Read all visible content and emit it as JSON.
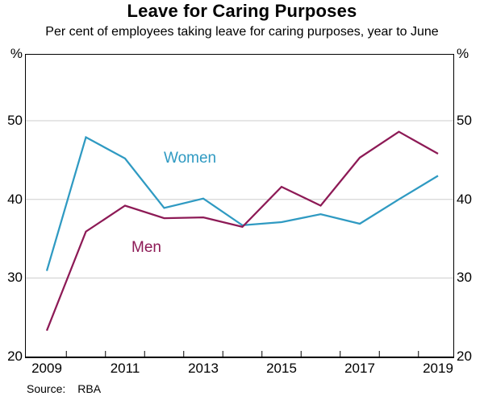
{
  "title": "Leave for Caring Purposes",
  "subtitle": "Per cent of employees taking leave for caring purposes, year to June",
  "source": {
    "label": "Source:",
    "value": "RBA"
  },
  "chart_data": {
    "type": "line",
    "title": "Leave for Caring Purposes",
    "subtitle": "Per cent of employees taking leave for caring purposes, year to June",
    "x": [
      2009,
      2010,
      2011,
      2012,
      2013,
      2014,
      2015,
      2016,
      2017,
      2018,
      2019
    ],
    "series": [
      {
        "name": "Women",
        "color": "#2F9AC2",
        "values": [
          30.9,
          47.9,
          45.2,
          38.9,
          40.1,
          36.7,
          37.1,
          38.1,
          36.9,
          40.0,
          43.0
        ]
      },
      {
        "name": "Men",
        "color": "#8D1A56",
        "values": [
          23.3,
          35.9,
          39.2,
          37.6,
          37.7,
          36.5,
          41.6,
          39.2,
          45.3,
          48.6,
          45.8
        ]
      }
    ],
    "y_unit": "%",
    "ylim": [
      20,
      58.4
    ],
    "yticks": [
      20,
      30,
      40,
      50
    ],
    "gridlines_at": [
      30,
      40,
      50
    ],
    "grid_color": "#cdcdcd",
    "xtick_labels": [
      2009,
      2011,
      2013,
      2015,
      2017,
      2019
    ],
    "minor_tick_years": [
      2009.5,
      2010.5,
      2011.5,
      2012.5,
      2013.5,
      2014.5,
      2015.5,
      2016.5,
      2017.5,
      2018.5
    ],
    "legend_position": "inline-labels",
    "xlabel": "",
    "ylabel": "%"
  }
}
